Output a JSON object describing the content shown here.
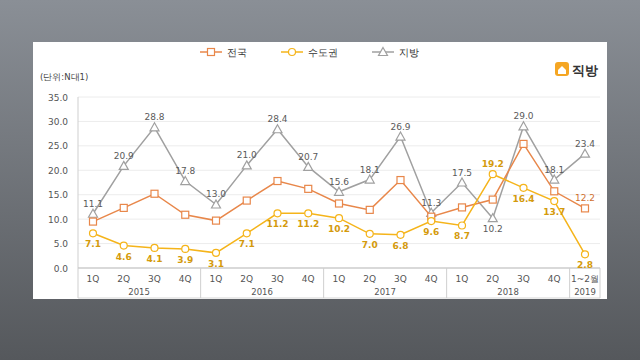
{
  "chart_data": {
    "type": "line",
    "ylabel": "(단위:N대1)",
    "logo": "직방",
    "categories": [
      "1Q",
      "2Q",
      "3Q",
      "4Q",
      "1Q",
      "2Q",
      "3Q",
      "4Q",
      "1Q",
      "2Q",
      "3Q",
      "4Q",
      "1Q",
      "2Q",
      "3Q",
      "4Q",
      "1~2월"
    ],
    "x_groups": [
      {
        "label": "2015",
        "span": 4
      },
      {
        "label": "2016",
        "span": 4
      },
      {
        "label": "2017",
        "span": 4
      },
      {
        "label": "2018",
        "span": 4
      },
      {
        "label": "2019",
        "span": 1
      }
    ],
    "series": [
      {
        "name": "전국",
        "color": "#e8874a",
        "marker": "square",
        "line_style": "solid",
        "values": [
          9.5,
          12.3,
          15.2,
          10.9,
          9.7,
          13.8,
          17.8,
          16.2,
          13.2,
          11.9,
          18.0,
          10.5,
          12.4,
          14.0,
          25.4,
          15.7,
          12.2
        ],
        "value_labels": [
          null,
          null,
          null,
          null,
          null,
          null,
          null,
          null,
          null,
          null,
          null,
          null,
          null,
          null,
          null,
          null,
          "12.2"
        ]
      },
      {
        "name": "수도권",
        "color": "#f5b41a",
        "marker": "circle",
        "line_style": "solid",
        "values": [
          7.1,
          4.6,
          4.1,
          3.9,
          3.1,
          7.1,
          11.2,
          11.2,
          10.2,
          7.0,
          6.8,
          9.6,
          8.7,
          19.2,
          16.4,
          13.7,
          2.8
        ],
        "value_labels": [
          "7.1",
          "4.6",
          "4.1",
          "3.9",
          "3.1",
          "7.1",
          "11.2",
          "11.2",
          "10.2",
          "7.0",
          "6.8",
          "9.6",
          "8.7",
          "19.2",
          "16.4",
          "13.7",
          "2.8"
        ]
      },
      {
        "name": "지방",
        "color": "#a0a0a0",
        "marker": "triangle",
        "line_style": "solid",
        "values": [
          11.1,
          20.9,
          28.8,
          17.8,
          13.0,
          21.0,
          28.4,
          20.7,
          15.6,
          18.1,
          26.9,
          11.3,
          17.5,
          10.2,
          29.0,
          18.1,
          23.4
        ],
        "value_labels": [
          "11.1",
          "20.9",
          "28.8",
          "17.8",
          "13.0",
          "21.0",
          "28.4",
          "20.7",
          "15.6",
          "18.1",
          "26.9",
          "11.3",
          "17.5",
          "10.2",
          "29.0",
          "18.1",
          "23.4"
        ]
      }
    ],
    "ylim": [
      0,
      35
    ],
    "yticks": [
      {
        "value": 0,
        "label": "0.0"
      },
      {
        "value": 5,
        "label": "5.0"
      },
      {
        "value": 10,
        "label": "10.0"
      },
      {
        "value": 15,
        "label": "15.0"
      },
      {
        "value": 20,
        "label": "20.0"
      },
      {
        "value": 25,
        "label": "25.0"
      },
      {
        "value": 30,
        "label": "30.0"
      },
      {
        "value": 35,
        "label": "35.0"
      }
    ],
    "grid": true,
    "data_labels": true,
    "legend": "top"
  }
}
